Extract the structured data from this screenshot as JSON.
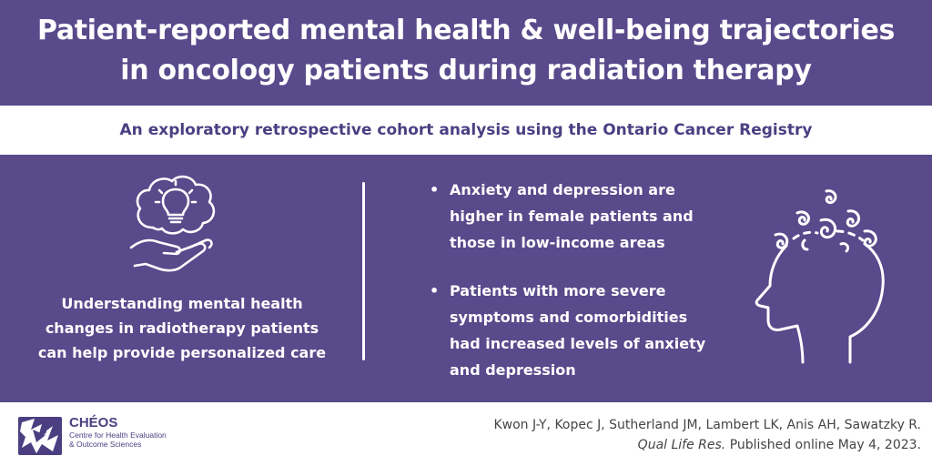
{
  "header": {
    "title_line1": "Patient-reported mental health & well-being trajectories",
    "title_line2": "in oncology patients during radiation therapy",
    "subtitle": "An exploratory retrospective cohort analysis using the Ontario Cancer Registry"
  },
  "left_panel": {
    "icon": "lightbulb-brain-in-hand-icon",
    "text_line1": "Understanding mental health",
    "text_line2": "changes in radiotherapy patients",
    "text_line3": "can help provide personalized care"
  },
  "findings": [
    {
      "line1": "Anxiety and depression are",
      "line2": "higher in female patients and",
      "line3": "those in low-income areas"
    },
    {
      "line1": "Patients with more severe",
      "line2": "symptoms and comorbidities",
      "line3": "had increased levels of anxiety",
      "line4": "and depression"
    }
  ],
  "right_icon": "head-with-swirls-icon",
  "footer": {
    "logo_icon": "cheos-logo",
    "org_name": "CHÉOS",
    "org_line1": "Centre for Health Evaluation",
    "org_line2": "& Outcome Sciences",
    "authors": "Kwon J-Y, Kopec J, Sutherland JM, Lambert LK, Anis AH, Sawatzky R.",
    "journal": "Qual Life Res.",
    "published": " Published online May 4, 2023."
  },
  "colors": {
    "purple": "#584a8b",
    "dark_purple": "#4b3f82",
    "white": "#ffffff",
    "citation_gray": "#444444"
  }
}
